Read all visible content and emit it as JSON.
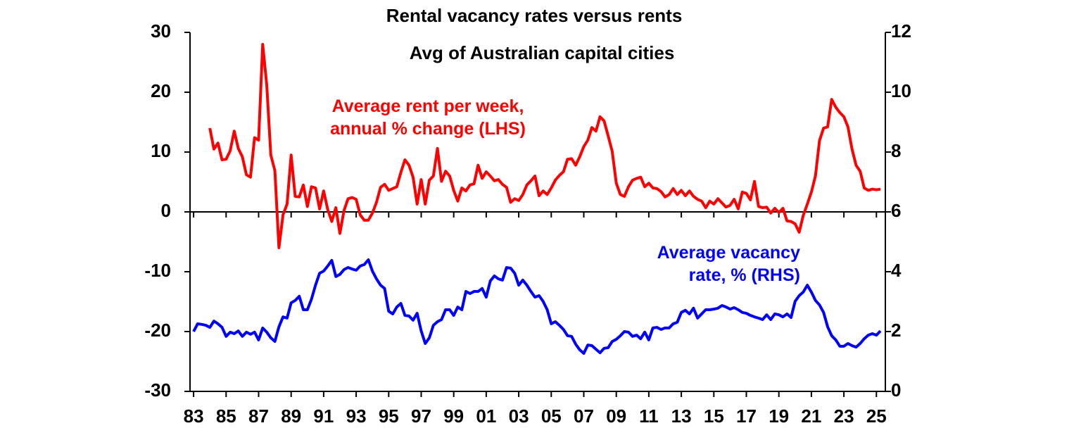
{
  "chart_data": {
    "type": "line",
    "title": "Rental vacancy rates versus rents",
    "subtitle": "Avg of Australian capital cities",
    "x": [
      1983,
      1983.25,
      1983.5,
      1983.75,
      1984,
      1984.25,
      1984.5,
      1984.75,
      1985,
      1985.25,
      1985.5,
      1985.75,
      1986,
      1986.25,
      1986.5,
      1986.75,
      1987,
      1987.25,
      1987.5,
      1987.75,
      1988,
      1988.25,
      1988.5,
      1988.75,
      1989,
      1989.25,
      1989.5,
      1989.75,
      1990,
      1990.25,
      1990.5,
      1990.75,
      1991,
      1991.25,
      1991.5,
      1991.75,
      1992,
      1992.25,
      1992.5,
      1992.75,
      1993,
      1993.25,
      1993.5,
      1993.75,
      1994,
      1994.25,
      1994.5,
      1994.75,
      1995,
      1995.25,
      1995.5,
      1995.75,
      1996,
      1996.25,
      1996.5,
      1996.75,
      1997,
      1997.25,
      1997.5,
      1997.75,
      1998,
      1998.25,
      1998.5,
      1998.75,
      1999,
      1999.25,
      1999.5,
      1999.75,
      2000,
      2000.25,
      2000.5,
      2000.75,
      2001,
      2001.25,
      2001.5,
      2001.75,
      2002,
      2002.25,
      2002.5,
      2002.75,
      2003,
      2003.25,
      2003.5,
      2003.75,
      2004,
      2004.25,
      2004.5,
      2004.75,
      2005,
      2005.25,
      2005.5,
      2005.75,
      2006,
      2006.25,
      2006.5,
      2006.75,
      2007,
      2007.25,
      2007.5,
      2007.75,
      2008,
      2008.25,
      2008.5,
      2008.75,
      2009,
      2009.25,
      2009.5,
      2009.75,
      2010,
      2010.25,
      2010.5,
      2010.75,
      2011,
      2011.25,
      2011.5,
      2011.75,
      2012,
      2012.25,
      2012.5,
      2012.75,
      2013,
      2013.25,
      2013.5,
      2013.75,
      2014,
      2014.25,
      2014.5,
      2014.75,
      2015,
      2015.25,
      2015.5,
      2015.75,
      2016,
      2016.25,
      2016.5,
      2016.75,
      2017,
      2017.25,
      2017.5,
      2017.75,
      2018,
      2018.25,
      2018.5,
      2018.75,
      2019,
      2019.25,
      2019.5,
      2019.75,
      2020,
      2020.25,
      2020.5,
      2020.75,
      2021,
      2021.25,
      2021.5,
      2021.75,
      2022,
      2022.25,
      2022.5,
      2022.75,
      2023,
      2023.25,
      2023.5,
      2023.75,
      2024,
      2024.25,
      2024.5,
      2024.75,
      2025,
      2025.25
    ],
    "series": [
      {
        "name": [
          "Average rent per week,",
          "annual % change (LHS)"
        ],
        "color": "#ff0000",
        "axis": "y",
        "values": [
          null,
          null,
          null,
          null,
          14.0,
          10.5,
          11.5,
          8.7,
          8.8,
          10.2,
          13.5,
          10.6,
          9.2,
          6.2,
          5.8,
          12.4,
          12.0,
          28.0,
          21.2,
          9.5,
          6.9,
          -6.0,
          -0.5,
          1.3,
          9.5,
          2.6,
          2.5,
          4.5,
          0.9,
          4.2,
          4.0,
          0.5,
          3.5,
          0.4,
          -1.6,
          0.7,
          -3.6,
          0.2,
          2.2,
          2.4,
          2.1,
          -0.5,
          -1.4,
          -1.4,
          -0.2,
          1.6,
          4.1,
          4.6,
          3.6,
          3.9,
          4.2,
          6.6,
          8.7,
          7.8,
          5.8,
          1.3,
          5.4,
          1.3,
          5.3,
          6.0,
          10.6,
          5.1,
          6.8,
          6.0,
          3.6,
          1.8,
          4.0,
          3.5,
          4.5,
          4.7,
          7.8,
          5.6,
          6.7,
          6.0,
          5.2,
          5.4,
          4.6,
          4.1,
          1.6,
          2.2,
          1.9,
          2.9,
          4.5,
          5.2,
          6.0,
          2.7,
          3.5,
          2.9,
          4.0,
          5.3,
          6.1,
          6.7,
          8.8,
          8.9,
          7.8,
          9.2,
          10.9,
          12.0,
          14.1,
          13.5,
          15.9,
          15.2,
          12.7,
          10.1,
          4.8,
          2.9,
          2.6,
          4.2,
          5.3,
          5.6,
          5.8,
          4.2,
          4.8,
          4.0,
          3.9,
          3.4,
          2.5,
          2.9,
          3.9,
          2.9,
          3.6,
          2.7,
          3.5,
          2.6,
          2.1,
          1.8,
          0.7,
          1.8,
          1.3,
          2.2,
          1.5,
          0.8,
          1.1,
          2.1,
          0.5,
          3.3,
          3.1,
          2.0,
          5.1,
          0.9,
          0.7,
          0.8,
          -0.2,
          0.6,
          -0.1,
          0.6,
          -1.5,
          -1.6,
          -2.0,
          -3.4,
          -0.6,
          1.3,
          3.3,
          6.0,
          11.9,
          14.0,
          14.2,
          18.8,
          17.5,
          16.6,
          15.9,
          14.2,
          10.5,
          7.8,
          6.8,
          4.0,
          3.6,
          3.8,
          3.7,
          3.8
        ]
      },
      {
        "name": [
          "Average vacancy",
          "rate, % (RHS)"
        ],
        "color": "#0000ff",
        "axis": "y2",
        "values": [
          2.0,
          2.26,
          2.24,
          2.21,
          2.14,
          2.35,
          2.26,
          2.14,
          1.84,
          1.98,
          1.93,
          2.02,
          1.84,
          1.98,
          1.91,
          1.98,
          1.72,
          2.12,
          1.98,
          1.79,
          1.67,
          2.16,
          2.49,
          2.45,
          2.96,
          3.04,
          3.18,
          2.73,
          2.73,
          3.08,
          3.55,
          3.95,
          4.02,
          4.19,
          4.38,
          3.84,
          3.91,
          4.07,
          4.14,
          4.09,
          4.05,
          4.19,
          4.24,
          4.4,
          4.02,
          3.76,
          3.55,
          3.44,
          2.68,
          2.59,
          2.82,
          2.94,
          2.54,
          2.52,
          2.38,
          2.61,
          2.02,
          1.6,
          1.79,
          2.21,
          2.33,
          2.4,
          2.73,
          2.73,
          2.54,
          2.82,
          2.73,
          3.34,
          3.27,
          3.34,
          3.34,
          3.44,
          3.15,
          3.69,
          3.86,
          3.76,
          3.72,
          4.14,
          4.12,
          3.95,
          3.55,
          3.72,
          3.55,
          3.34,
          3.15,
          3.2,
          3.01,
          2.73,
          2.26,
          2.33,
          2.21,
          2.07,
          1.86,
          1.84,
          1.58,
          1.39,
          1.27,
          1.55,
          1.53,
          1.41,
          1.29,
          1.44,
          1.46,
          1.67,
          1.74,
          1.86,
          2.0,
          1.98,
          1.84,
          1.88,
          1.76,
          1.98,
          1.72,
          2.12,
          2.14,
          2.07,
          2.12,
          2.12,
          2.26,
          2.31,
          2.64,
          2.71,
          2.59,
          2.78,
          2.45,
          2.59,
          2.73,
          2.73,
          2.75,
          2.78,
          2.87,
          2.82,
          2.75,
          2.8,
          2.73,
          2.64,
          2.61,
          2.54,
          2.49,
          2.45,
          2.4,
          2.56,
          2.4,
          2.59,
          2.56,
          2.49,
          2.59,
          2.47,
          3.01,
          3.2,
          3.32,
          3.55,
          3.32,
          3.04,
          2.89,
          2.64,
          2.16,
          1.86,
          1.72,
          1.51,
          1.51,
          1.6,
          1.53,
          1.48,
          1.6,
          1.76,
          1.88,
          1.93,
          1.88,
          2.02
        ]
      }
    ],
    "xlim": [
      1982.78,
      2025.55
    ],
    "xticks": [
      {
        "value": 1983,
        "label": "83"
      },
      {
        "value": 1985,
        "label": "85"
      },
      {
        "value": 1987,
        "label": "87"
      },
      {
        "value": 1989,
        "label": "89"
      },
      {
        "value": 1991,
        "label": "91"
      },
      {
        "value": 1993,
        "label": "93"
      },
      {
        "value": 1995,
        "label": "95"
      },
      {
        "value": 1997,
        "label": "97"
      },
      {
        "value": 1999,
        "label": "99"
      },
      {
        "value": 2001,
        "label": "01"
      },
      {
        "value": 2003,
        "label": "03"
      },
      {
        "value": 2005,
        "label": "05"
      },
      {
        "value": 2007,
        "label": "07"
      },
      {
        "value": 2009,
        "label": "09"
      },
      {
        "value": 2011,
        "label": "11"
      },
      {
        "value": 2013,
        "label": "13"
      },
      {
        "value": 2015,
        "label": "15"
      },
      {
        "value": 2017,
        "label": "17"
      },
      {
        "value": 2019,
        "label": "19"
      },
      {
        "value": 2021,
        "label": "21"
      },
      {
        "value": 2023,
        "label": "23"
      },
      {
        "value": 2025,
        "label": "25"
      }
    ],
    "ylim": [
      -30,
      30
    ],
    "yticks": [
      -30,
      -20,
      -10,
      0,
      10,
      20,
      30
    ],
    "y2lim": [
      0,
      12
    ],
    "y2ticks": [
      0,
      2,
      4,
      6,
      8,
      10,
      12
    ],
    "grid": false
  }
}
